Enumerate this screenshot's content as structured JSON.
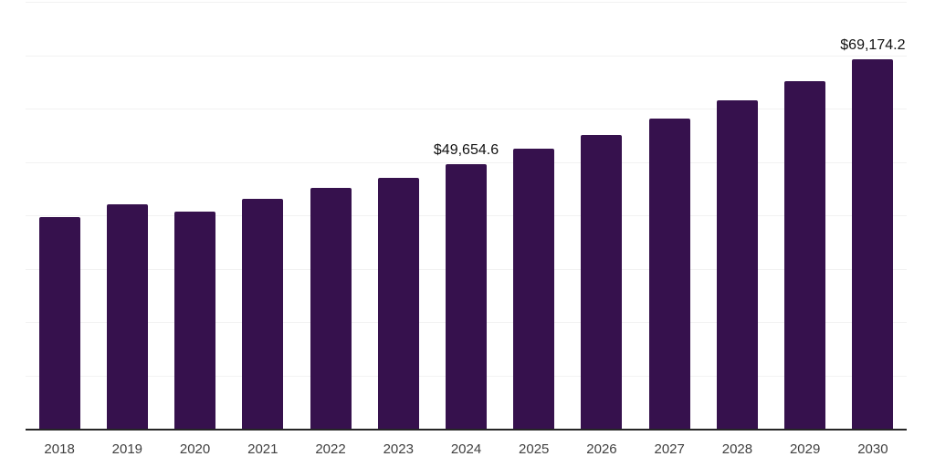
{
  "chart_data": {
    "type": "bar",
    "title": "",
    "categories": [
      "2018",
      "2019",
      "2020",
      "2021",
      "2022",
      "2023",
      "2024",
      "2025",
      "2026",
      "2027",
      "2028",
      "2029",
      "2030"
    ],
    "values": [
      39600,
      42000,
      40700,
      43000,
      45100,
      47000,
      49654.6,
      52400,
      55100,
      58200,
      61600,
      65200,
      69174.2
    ],
    "data_labels": {
      "2024": "$49,654.6",
      "2030": "$69,174.2"
    },
    "xlabel": "",
    "ylabel": "",
    "ylim": [
      0,
      80000
    ],
    "gridline_step": 10000,
    "grid": "horizontal",
    "y_axis_tick_labels": "none",
    "legend": "none",
    "colors": {
      "bar": "#36114d",
      "axis_line": "#262626",
      "gridline": "#f2f2f2",
      "tick_label": "#3f3f3f",
      "data_label": "#111111",
      "background": "#ffffff"
    }
  }
}
